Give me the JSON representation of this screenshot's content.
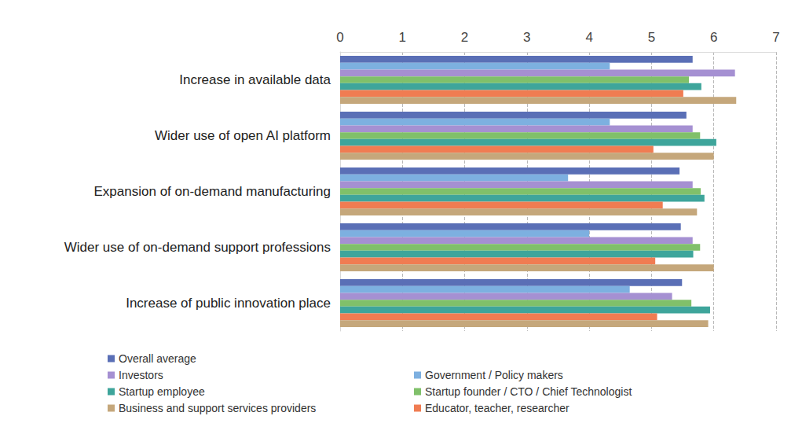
{
  "chart_data": {
    "type": "bar",
    "orientation": "horizontal",
    "categories": [
      "Increase in available data",
      "Wider use of open AI platform",
      "Expansion of on-demand manufacturing",
      "Wider use of on-demand support professions",
      "Increase of public innovation place"
    ],
    "series": [
      {
        "name": "Overall average",
        "color": "#5a6fb6",
        "values": [
          5.66,
          5.56,
          5.45,
          5.47,
          5.49
        ]
      },
      {
        "name": "Government / Policy makers",
        "color": "#7db0e0",
        "values": [
          4.33,
          4.33,
          3.66,
          4.0,
          4.65
        ]
      },
      {
        "name": "Investors",
        "color": "#a590d2",
        "values": [
          6.34,
          5.66,
          5.66,
          5.66,
          5.33
        ]
      },
      {
        "name": "Startup founder / CTO / Chief Technologist",
        "color": "#80c06a",
        "values": [
          5.6,
          5.78,
          5.79,
          5.78,
          5.64
        ]
      },
      {
        "name": "Startup employee",
        "color": "#3ea59b",
        "values": [
          5.8,
          6.04,
          5.85,
          5.67,
          5.94
        ]
      },
      {
        "name": "Educator, teacher, researcher",
        "color": "#f07c52",
        "values": [
          5.51,
          5.03,
          5.18,
          5.06,
          5.09
        ]
      },
      {
        "name": "Business and support services providers",
        "color": "#c5a77b",
        "values": [
          6.36,
          6.0,
          5.73,
          6.0,
          5.91
        ]
      }
    ],
    "xlim": [
      0,
      7
    ],
    "xticks": [
      0,
      1,
      2,
      3,
      4,
      5,
      6,
      7
    ],
    "grid": true,
    "legend": "bottom"
  }
}
